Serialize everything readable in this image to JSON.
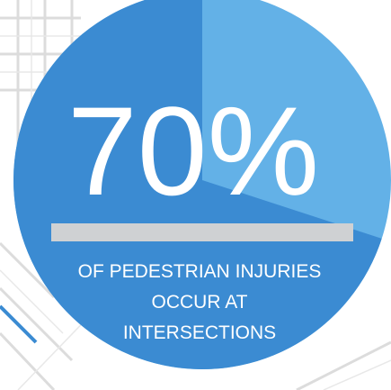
{
  "chart_data": {
    "type": "pie",
    "values": [
      70
    ],
    "value_labels": [
      "70%"
    ],
    "color": "#3b8bd2",
    "background_color": "#63b1e7",
    "caption": [
      "OF PEDESTRIAN INJURIES",
      "OCCUR AT",
      "INTERSECTIONS"
    ]
  }
}
